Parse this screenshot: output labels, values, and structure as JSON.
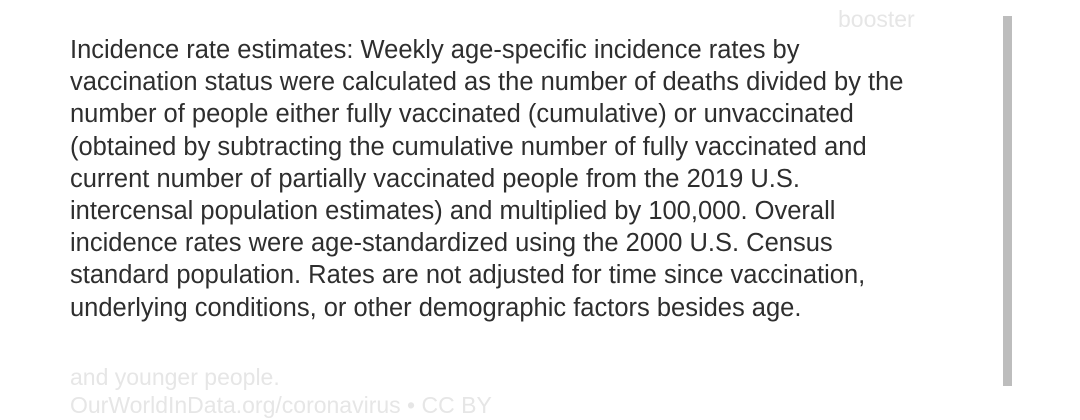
{
  "background": {
    "top_label": "booster",
    "footer_line": "and younger people.",
    "source": "OurWorldInData.org/coronavirus • CC BY"
  },
  "popup": {
    "lines": [
      "Incidence rate estimates: Weekly age-specific incidence rates by",
      "vaccination status were calculated as the number of deaths divided by the",
      "number of people either fully vaccinated (cumulative) or unvaccinated",
      "(obtained by subtracting the cumulative number of fully vaccinated and",
      "current number of partially vaccinated people from the 2019 U.S.",
      "intercensal population estimates) and multiplied by 100,000. Overall",
      "incidence rates were age-standardized using the 2000 U.S. Census",
      "standard population. Rates are not adjusted for time since vaccination,",
      "underlying conditions, or other demographic factors besides age."
    ]
  }
}
